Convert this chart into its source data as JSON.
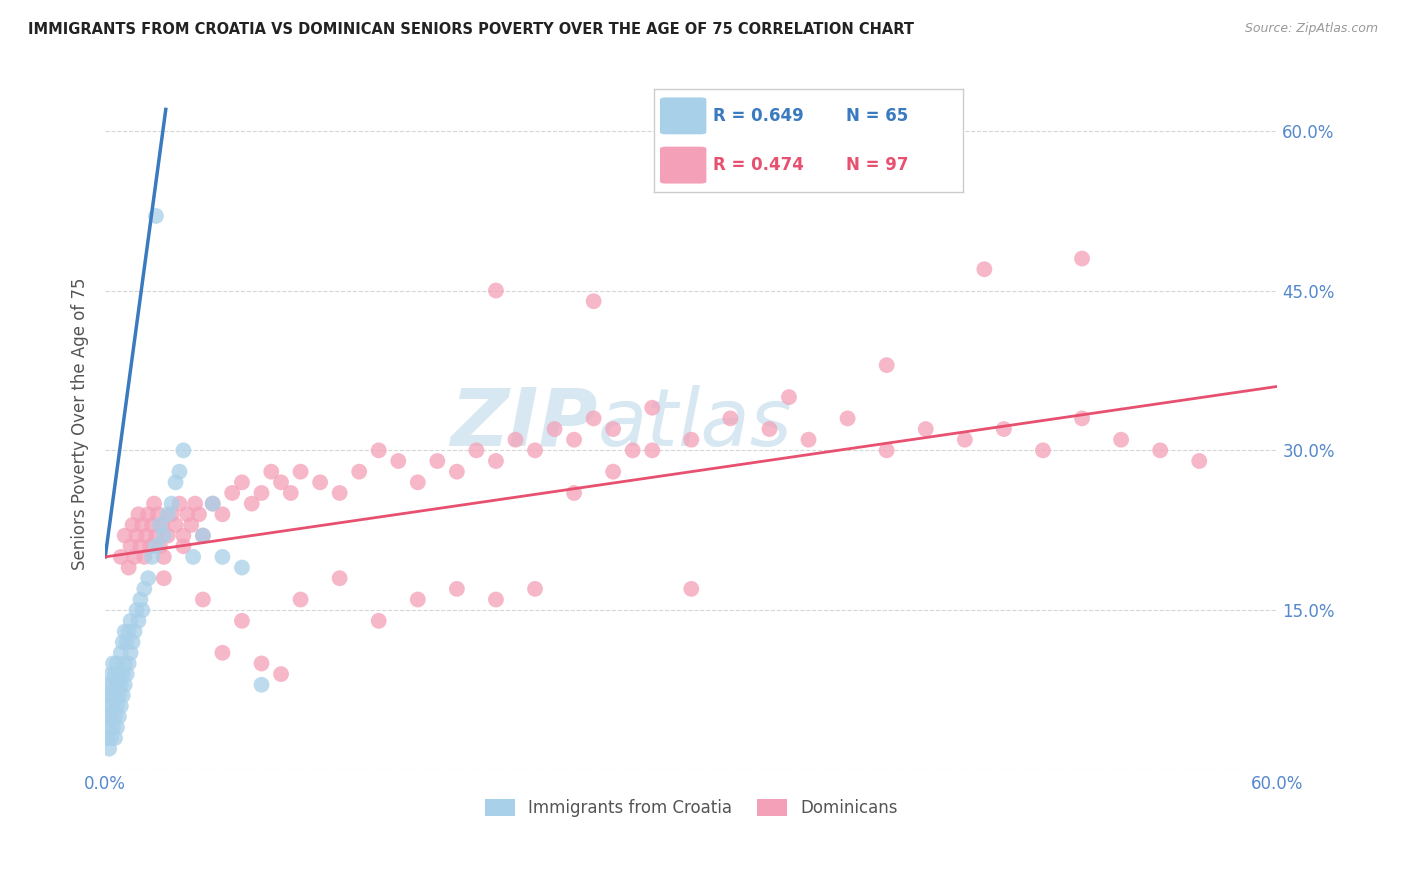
{
  "title": "IMMIGRANTS FROM CROATIA VS DOMINICAN SENIORS POVERTY OVER THE AGE OF 75 CORRELATION CHART",
  "source": "Source: ZipAtlas.com",
  "ylabel": "Seniors Poverty Over the Age of 75",
  "xlim": [
    0.0,
    0.6
  ],
  "ylim": [
    0.0,
    0.65
  ],
  "yticks": [
    0.0,
    0.15,
    0.3,
    0.45,
    0.6
  ],
  "xticks": [
    0.0,
    0.1,
    0.2,
    0.3,
    0.4,
    0.5,
    0.6
  ],
  "color_croatia": "#a8d0e8",
  "color_dominican": "#f4a0b8",
  "color_line_croatia": "#3a7abf",
  "color_line_dominican": "#e85070",
  "color_axis_labels": "#5588cc",
  "watermark_color": "#d0e4f0",
  "background_color": "#ffffff",
  "croatia_x": [
    0.001,
    0.001,
    0.001,
    0.002,
    0.002,
    0.002,
    0.002,
    0.003,
    0.003,
    0.003,
    0.003,
    0.004,
    0.004,
    0.004,
    0.004,
    0.005,
    0.005,
    0.005,
    0.005,
    0.006,
    0.006,
    0.006,
    0.006,
    0.007,
    0.007,
    0.007,
    0.008,
    0.008,
    0.008,
    0.009,
    0.009,
    0.009,
    0.01,
    0.01,
    0.01,
    0.011,
    0.011,
    0.012,
    0.012,
    0.013,
    0.013,
    0.014,
    0.015,
    0.016,
    0.017,
    0.018,
    0.019,
    0.02,
    0.022,
    0.024,
    0.026,
    0.028,
    0.03,
    0.032,
    0.034,
    0.036,
    0.038,
    0.04,
    0.045,
    0.05,
    0.055,
    0.06,
    0.07,
    0.08,
    0.026
  ],
  "croatia_y": [
    0.03,
    0.05,
    0.07,
    0.02,
    0.04,
    0.06,
    0.08,
    0.03,
    0.05,
    0.07,
    0.09,
    0.04,
    0.06,
    0.08,
    0.1,
    0.03,
    0.05,
    0.07,
    0.09,
    0.04,
    0.06,
    0.08,
    0.1,
    0.05,
    0.07,
    0.09,
    0.06,
    0.08,
    0.11,
    0.07,
    0.09,
    0.12,
    0.08,
    0.1,
    0.13,
    0.09,
    0.12,
    0.1,
    0.13,
    0.11,
    0.14,
    0.12,
    0.13,
    0.15,
    0.14,
    0.16,
    0.15,
    0.17,
    0.18,
    0.2,
    0.21,
    0.23,
    0.22,
    0.24,
    0.25,
    0.27,
    0.28,
    0.3,
    0.2,
    0.22,
    0.25,
    0.2,
    0.19,
    0.08,
    0.52
  ],
  "dominican_x": [
    0.008,
    0.01,
    0.012,
    0.013,
    0.014,
    0.015,
    0.016,
    0.017,
    0.018,
    0.019,
    0.02,
    0.021,
    0.022,
    0.023,
    0.024,
    0.025,
    0.026,
    0.027,
    0.028,
    0.029,
    0.03,
    0.032,
    0.034,
    0.036,
    0.038,
    0.04,
    0.042,
    0.044,
    0.046,
    0.048,
    0.05,
    0.055,
    0.06,
    0.065,
    0.07,
    0.075,
    0.08,
    0.085,
    0.09,
    0.095,
    0.1,
    0.11,
    0.12,
    0.13,
    0.14,
    0.15,
    0.16,
    0.17,
    0.18,
    0.19,
    0.2,
    0.21,
    0.22,
    0.23,
    0.24,
    0.25,
    0.26,
    0.27,
    0.28,
    0.3,
    0.32,
    0.34,
    0.36,
    0.38,
    0.4,
    0.42,
    0.44,
    0.46,
    0.48,
    0.5,
    0.52,
    0.54,
    0.56,
    0.03,
    0.04,
    0.05,
    0.06,
    0.07,
    0.08,
    0.09,
    0.1,
    0.12,
    0.14,
    0.16,
    0.18,
    0.2,
    0.22,
    0.24,
    0.26,
    0.28,
    0.3,
    0.35,
    0.4,
    0.45,
    0.5,
    0.2,
    0.25
  ],
  "dominican_y": [
    0.2,
    0.22,
    0.19,
    0.21,
    0.23,
    0.2,
    0.22,
    0.24,
    0.21,
    0.23,
    0.2,
    0.22,
    0.24,
    0.21,
    0.23,
    0.25,
    0.22,
    0.24,
    0.21,
    0.23,
    0.2,
    0.22,
    0.24,
    0.23,
    0.25,
    0.22,
    0.24,
    0.23,
    0.25,
    0.24,
    0.22,
    0.25,
    0.24,
    0.26,
    0.27,
    0.25,
    0.26,
    0.28,
    0.27,
    0.26,
    0.28,
    0.27,
    0.26,
    0.28,
    0.3,
    0.29,
    0.27,
    0.29,
    0.28,
    0.3,
    0.29,
    0.31,
    0.3,
    0.32,
    0.31,
    0.33,
    0.32,
    0.3,
    0.34,
    0.31,
    0.33,
    0.32,
    0.31,
    0.33,
    0.3,
    0.32,
    0.31,
    0.32,
    0.3,
    0.33,
    0.31,
    0.3,
    0.29,
    0.18,
    0.21,
    0.16,
    0.11,
    0.14,
    0.1,
    0.09,
    0.16,
    0.18,
    0.14,
    0.16,
    0.17,
    0.16,
    0.17,
    0.26,
    0.28,
    0.3,
    0.17,
    0.35,
    0.38,
    0.47,
    0.48,
    0.45,
    0.44
  ],
  "line_croatia_x0": 0.0,
  "line_croatia_x1": 0.031,
  "line_croatia_y0": 0.2,
  "line_croatia_y1": 0.62,
  "line_dominican_x0": 0.0,
  "line_dominican_x1": 0.6,
  "line_dominican_y0": 0.2,
  "line_dominican_y1": 0.36
}
